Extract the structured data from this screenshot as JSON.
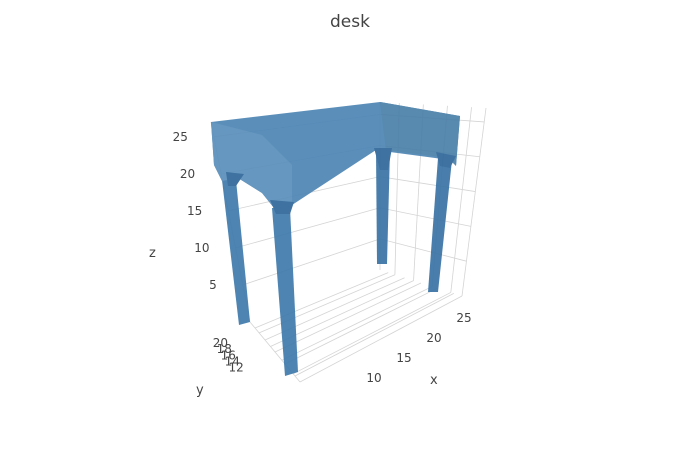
{
  "chart_data": {
    "type": "mesh3d",
    "title": "desk",
    "xlabel": "x",
    "ylabel": "y",
    "zlabel": "z",
    "x_ticks": [
      10,
      15,
      20,
      25
    ],
    "y_ticks": [
      12,
      14,
      16,
      18,
      20
    ],
    "z_ticks": [
      5,
      10,
      15,
      20,
      25
    ],
    "mesh_color": "#3b75a6",
    "grid": true
  }
}
